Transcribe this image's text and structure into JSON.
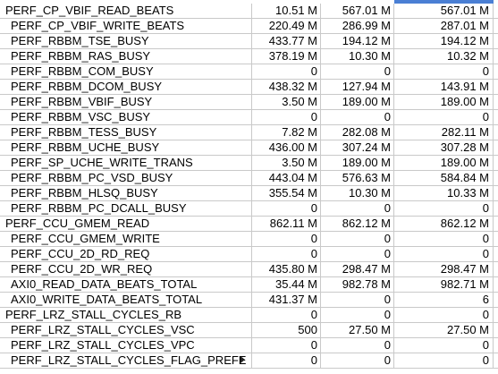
{
  "rows": [
    {
      "name": "PERF_CP_VBIF_READ_BEATS",
      "c1": "10.51 M",
      "c2": "567.01 M",
      "c3": "567.01 M",
      "indent": false
    },
    {
      "name": "PERF_CP_VBIF_WRITE_BEATS",
      "c1": "220.49 M",
      "c2": "286.99 M",
      "c3": "287.01 M",
      "indent": true
    },
    {
      "name": "PERF_RBBM_TSE_BUSY",
      "c1": "433.77 M",
      "c2": "194.12 M",
      "c3": "194.12 M",
      "indent": true
    },
    {
      "name": "PERF_RBBM_RAS_BUSY",
      "c1": "378.19 M",
      "c2": "10.30 M",
      "c3": "10.32 M",
      "indent": true
    },
    {
      "name": "PERF_RBBM_COM_BUSY",
      "c1": "0",
      "c2": "0",
      "c3": "0",
      "indent": true
    },
    {
      "name": "PERF_RBBM_DCOM_BUSY",
      "c1": "438.32 M",
      "c2": "127.94 M",
      "c3": "143.91 M",
      "indent": true
    },
    {
      "name": "PERF_RBBM_VBIF_BUSY",
      "c1": "3.50 M",
      "c2": "189.00 M",
      "c3": "189.00 M",
      "indent": true
    },
    {
      "name": "PERF_RBBM_VSC_BUSY",
      "c1": "0",
      "c2": "0",
      "c3": "0",
      "indent": true
    },
    {
      "name": "PERF_RBBM_TESS_BUSY",
      "c1": "7.82 M",
      "c2": "282.08 M",
      "c3": "282.11 M",
      "indent": true
    },
    {
      "name": "PERF_RBBM_UCHE_BUSY",
      "c1": "436.00 M",
      "c2": "307.24 M",
      "c3": "307.28 M",
      "indent": true
    },
    {
      "name": "PERF_SP_UCHE_WRITE_TRANS",
      "c1": "3.50 M",
      "c2": "189.00 M",
      "c3": "189.00 M",
      "indent": true
    },
    {
      "name": "PERF_RBBM_PC_VSD_BUSY",
      "c1": "443.04 M",
      "c2": "576.63 M",
      "c3": "584.84 M",
      "indent": true
    },
    {
      "name": "PERF_RBBM_HLSQ_BUSY",
      "c1": "355.54 M",
      "c2": "10.30 M",
      "c3": "10.33 M",
      "indent": true
    },
    {
      "name": "PERF_RBBM_PC_DCALL_BUSY",
      "c1": "0",
      "c2": "0",
      "c3": "0",
      "indent": true
    },
    {
      "name": "PERF_CCU_GMEM_READ",
      "c1": "862.11 M",
      "c2": "862.12 M",
      "c3": "862.12 M",
      "indent": false
    },
    {
      "name": "PERF_CCU_GMEM_WRITE",
      "c1": "0",
      "c2": "0",
      "c3": "0",
      "indent": true
    },
    {
      "name": "PERF_CCU_2D_RD_REQ",
      "c1": "0",
      "c2": "0",
      "c3": "0",
      "indent": true
    },
    {
      "name": "PERF_CCU_2D_WR_REQ",
      "c1": "435.80 M",
      "c2": "298.47 M",
      "c3": "298.47 M",
      "indent": true
    },
    {
      "name": "AXI0_READ_DATA_BEATS_TOTAL",
      "c1": "35.44 M",
      "c2": "982.78 M",
      "c3": "982.71 M",
      "indent": true
    },
    {
      "name": "AXI0_WRITE_DATA_BEATS_TOTAL",
      "c1": "431.37 M",
      "c2": "0",
      "c3": "6",
      "indent": true
    },
    {
      "name": "PERF_LRZ_STALL_CYCLES_RB",
      "c1": "0",
      "c2": "0",
      "c3": "0",
      "indent": false
    },
    {
      "name": "PERF_LRZ_STALL_CYCLES_VSC",
      "c1": "500",
      "c2": "27.50 M",
      "c3": "27.50 M",
      "indent": true
    },
    {
      "name": "PERF_LRZ_STALL_CYCLES_VPC",
      "c1": "0",
      "c2": "0",
      "c3": "0",
      "indent": true
    },
    {
      "name": "PERF_LRZ_STALL_CYCLES_FLAG_PREFE",
      "c1": "0",
      "c2": "0",
      "c3": "0",
      "indent": true
    }
  ],
  "colors": {
    "grid": "#c9c9c9",
    "selection": "#4a7fd4"
  },
  "icons": {
    "overflow": "text-overflow-arrow-icon"
  }
}
